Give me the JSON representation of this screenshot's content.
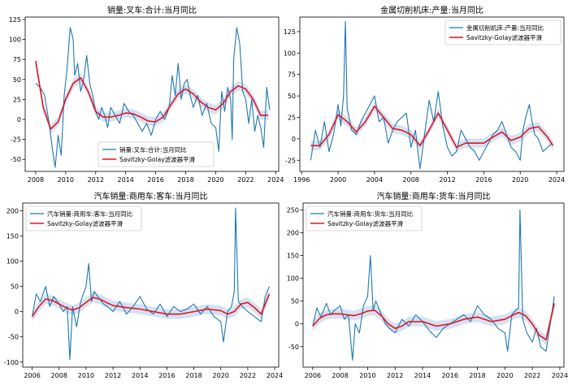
{
  "colors": {
    "raw": "#1f77b4",
    "smooth": "#e8141b",
    "band": "#a9c6e8"
  },
  "chart_data": [
    {
      "type": "line",
      "title": "销量:叉车:合计:当月同比",
      "xlim": [
        2007.3,
        2024.2
      ],
      "ylim": [
        -65,
        128
      ],
      "xticks": [
        2008,
        2010,
        2012,
        2014,
        2016,
        2018,
        2020,
        2022,
        2024
      ],
      "yticks": [
        -50,
        -25,
        0,
        25,
        50,
        75,
        100,
        125
      ],
      "legend_position": "lower-center",
      "series": [
        {
          "name": "销量:叉车:合计:当月同比",
          "role": "raw",
          "x": [
            2008.0,
            2008.3,
            2008.6,
            2008.9,
            2009.1,
            2009.3,
            2009.5,
            2009.7,
            2009.9,
            2010.1,
            2010.3,
            2010.5,
            2010.6,
            2010.8,
            2011.0,
            2011.2,
            2011.4,
            2011.6,
            2011.8,
            2012.0,
            2012.2,
            2012.4,
            2012.6,
            2012.8,
            2013.0,
            2013.3,
            2013.6,
            2013.9,
            2014.2,
            2014.5,
            2014.8,
            2015.1,
            2015.4,
            2015.7,
            2016.0,
            2016.3,
            2016.6,
            2016.9,
            2017.1,
            2017.3,
            2017.5,
            2017.7,
            2017.9,
            2018.1,
            2018.3,
            2018.5,
            2018.8,
            2019.1,
            2019.4,
            2019.7,
            2020.0,
            2020.2,
            2020.4,
            2020.6,
            2020.8,
            2021.0,
            2021.1,
            2021.2,
            2021.4,
            2021.6,
            2021.8,
            2022.0,
            2022.2,
            2022.4,
            2022.6,
            2022.8,
            2023.0,
            2023.2,
            2023.4,
            2023.6
          ],
          "y": [
            45,
            40,
            30,
            -5,
            -35,
            -60,
            -20,
            -45,
            30,
            65,
            115,
            100,
            55,
            70,
            35,
            50,
            80,
            45,
            30,
            10,
            0,
            15,
            5,
            -10,
            15,
            5,
            -5,
            20,
            10,
            5,
            -5,
            -15,
            -5,
            -20,
            0,
            10,
            0,
            15,
            55,
            30,
            70,
            25,
            45,
            50,
            30,
            15,
            30,
            5,
            20,
            -5,
            -10,
            -40,
            35,
            10,
            40,
            25,
            -25,
            75,
            115,
            95,
            35,
            25,
            -5,
            25,
            -15,
            5,
            -10,
            -35,
            40,
            12
          ]
        },
        {
          "name": "Savitzky-Golay滤波器平滑",
          "role": "smooth",
          "x": [
            2008.0,
            2008.5,
            2009.0,
            2009.5,
            2010.0,
            2010.5,
            2011.0,
            2011.5,
            2012.0,
            2012.5,
            2013.0,
            2013.5,
            2014.0,
            2014.5,
            2015.0,
            2015.5,
            2016.0,
            2016.5,
            2017.0,
            2017.5,
            2018.0,
            2018.5,
            2019.0,
            2019.5,
            2020.0,
            2020.5,
            2021.0,
            2021.5,
            2022.0,
            2022.5,
            2023.0,
            2023.5
          ],
          "y": [
            73,
            15,
            -12,
            -3,
            25,
            45,
            52,
            35,
            10,
            3,
            3,
            5,
            8,
            7,
            3,
            -2,
            -3,
            3,
            18,
            32,
            38,
            32,
            22,
            15,
            12,
            20,
            35,
            42,
            38,
            25,
            5,
            5
          ]
        }
      ]
    },
    {
      "type": "line",
      "title": "金属切削机床:产量:当月同比",
      "xlim": [
        1995.8,
        2024.8
      ],
      "ylim": [
        -38,
        142
      ],
      "xticks": [
        1996,
        2000,
        2004,
        2008,
        2012,
        2016,
        2020,
        2024
      ],
      "yticks": [
        -25,
        0,
        25,
        50,
        75,
        100,
        125
      ],
      "legend_position": "top-right",
      "series": [
        {
          "name": "金属切削机床:产量:当月同比",
          "role": "raw",
          "x": [
            1997.0,
            1997.5,
            1998.0,
            1998.5,
            1999.0,
            1999.5,
            2000.0,
            2000.3,
            2000.6,
            2000.8,
            2001.0,
            2001.5,
            2002.0,
            2002.5,
            2003.0,
            2003.5,
            2004.0,
            2004.5,
            2005.0,
            2005.5,
            2006.0,
            2006.5,
            2007.0,
            2007.5,
            2008.0,
            2008.5,
            2009.0,
            2009.5,
            2010.0,
            2010.5,
            2011.0,
            2011.5,
            2012.0,
            2012.5,
            2013.0,
            2013.5,
            2014.0,
            2014.5,
            2015.0,
            2015.5,
            2016.0,
            2016.5,
            2017.0,
            2017.5,
            2018.0,
            2018.5,
            2019.0,
            2019.5,
            2020.0,
            2020.3,
            2020.6,
            2021.0,
            2021.3,
            2021.6,
            2022.0,
            2022.5,
            2023.0,
            2023.5
          ],
          "y": [
            -25,
            10,
            -10,
            20,
            -15,
            5,
            40,
            15,
            50,
            137,
            35,
            10,
            5,
            20,
            30,
            40,
            50,
            20,
            25,
            -5,
            10,
            20,
            25,
            30,
            -10,
            10,
            -35,
            5,
            45,
            20,
            55,
            15,
            -10,
            -20,
            -15,
            10,
            0,
            -10,
            -15,
            -25,
            -15,
            -5,
            5,
            10,
            20,
            5,
            -10,
            -15,
            -25,
            10,
            25,
            40,
            20,
            5,
            0,
            -15,
            -10,
            -5
          ]
        },
        {
          "name": "Savitzky-Golay滤波器平滑",
          "role": "smooth",
          "x": [
            1997,
            1998,
            1999,
            2000,
            2001,
            2002,
            2003,
            2004,
            2005,
            2006,
            2007,
            2008,
            2009,
            2010,
            2011,
            2012,
            2013,
            2014,
            2015,
            2016,
            2017,
            2018,
            2019,
            2020,
            2021,
            2022,
            2023,
            2023.6
          ],
          "y": [
            -8,
            -8,
            5,
            28,
            20,
            8,
            20,
            38,
            25,
            12,
            10,
            5,
            -8,
            10,
            30,
            10,
            -10,
            -5,
            -5,
            -5,
            2,
            8,
            -2,
            2,
            12,
            14,
            2,
            -8
          ]
        }
      ]
    },
    {
      "type": "line",
      "title": "汽车销量:商用车:客车:当月同比",
      "xlim": [
        2005.3,
        2024.3
      ],
      "ylim": [
        -110,
        215
      ],
      "xticks": [
        2006,
        2008,
        2010,
        2012,
        2014,
        2016,
        2018,
        2020,
        2022,
        2024
      ],
      "yticks": [
        -100,
        -50,
        0,
        50,
        100,
        150,
        200
      ],
      "legend_position": "top-left",
      "series": [
        {
          "name": "汽车销量:商用车:客车:当月同比",
          "role": "raw",
          "x": [
            2006.0,
            2006.3,
            2006.6,
            2007.0,
            2007.3,
            2007.6,
            2008.0,
            2008.3,
            2008.6,
            2008.8,
            2009.0,
            2009.3,
            2009.6,
            2010.0,
            2010.2,
            2010.4,
            2010.6,
            2011.0,
            2011.3,
            2011.6,
            2012.0,
            2012.5,
            2013.0,
            2013.5,
            2014.0,
            2014.5,
            2015.0,
            2015.5,
            2016.0,
            2016.5,
            2017.0,
            2017.5,
            2018.0,
            2018.5,
            2019.0,
            2019.5,
            2020.0,
            2020.2,
            2020.5,
            2020.8,
            2021.0,
            2021.1,
            2021.3,
            2021.6,
            2022.0,
            2022.5,
            2023.0,
            2023.3,
            2023.6
          ],
          "y": [
            -10,
            35,
            20,
            50,
            10,
            30,
            15,
            0,
            10,
            -95,
            10,
            -30,
            20,
            50,
            95,
            20,
            40,
            25,
            15,
            10,
            0,
            20,
            -5,
            10,
            30,
            5,
            -5,
            15,
            -10,
            10,
            0,
            5,
            15,
            -5,
            10,
            -10,
            -20,
            -60,
            0,
            10,
            40,
            205,
            20,
            10,
            0,
            -10,
            -20,
            30,
            50
          ]
        },
        {
          "name": "Savitzky-Golay滤波器平滑",
          "role": "smooth",
          "x": [
            2006,
            2006.5,
            2007,
            2007.5,
            2008,
            2008.5,
            2009,
            2009.5,
            2010,
            2010.5,
            2011,
            2011.5,
            2012,
            2012.5,
            2013,
            2014,
            2015,
            2016,
            2017,
            2018,
            2019,
            2020,
            2020.5,
            2021,
            2021.5,
            2022,
            2022.5,
            2023,
            2023.6
          ],
          "y": [
            -10,
            10,
            25,
            22,
            15,
            8,
            3,
            8,
            18,
            28,
            25,
            18,
            12,
            10,
            8,
            5,
            0,
            -5,
            -5,
            0,
            5,
            2,
            -5,
            0,
            15,
            18,
            8,
            -5,
            35
          ]
        }
      ]
    },
    {
      "type": "line",
      "title": "汽车销量:商用车:货车:当月同比",
      "xlim": [
        2005.3,
        2024.3
      ],
      "ylim": [
        -95,
        265
      ],
      "xticks": [
        2006,
        2008,
        2010,
        2012,
        2014,
        2016,
        2018,
        2020,
        2022,
        2024
      ],
      "yticks": [
        -50,
        0,
        50,
        100,
        150,
        200,
        250
      ],
      "legend_position": "top-left",
      "series": [
        {
          "name": "汽车销量:商用车:货车:当月同比",
          "role": "raw",
          "x": [
            2006.0,
            2006.3,
            2006.6,
            2007.0,
            2007.3,
            2007.6,
            2008.0,
            2008.3,
            2008.6,
            2008.9,
            2009.1,
            2009.4,
            2009.7,
            2010.0,
            2010.2,
            2010.4,
            2010.6,
            2011.0,
            2011.3,
            2011.6,
            2012.0,
            2012.5,
            2013.0,
            2013.5,
            2014.0,
            2014.5,
            2015.0,
            2015.5,
            2016.0,
            2016.5,
            2017.0,
            2017.5,
            2018.0,
            2018.5,
            2019.0,
            2019.5,
            2020.0,
            2020.2,
            2020.5,
            2020.8,
            2021.0,
            2021.1,
            2021.3,
            2021.6,
            2022.0,
            2022.3,
            2022.6,
            2023.0,
            2023.3,
            2023.6
          ],
          "y": [
            -5,
            35,
            15,
            45,
            20,
            30,
            40,
            10,
            20,
            -80,
            0,
            -20,
            40,
            60,
            150,
            30,
            50,
            20,
            0,
            -10,
            -20,
            10,
            -5,
            20,
            5,
            -15,
            -30,
            -10,
            0,
            10,
            20,
            5,
            40,
            20,
            10,
            -10,
            -20,
            -60,
            20,
            30,
            35,
            250,
            10,
            -20,
            -40,
            -10,
            -50,
            -60,
            0,
            60
          ]
        },
        {
          "name": "Savitzky-Golay滤波器平滑",
          "role": "smooth",
          "x": [
            2006,
            2006.5,
            2007,
            2007.5,
            2008,
            2008.5,
            2009,
            2009.5,
            2010,
            2010.5,
            2011,
            2011.5,
            2012,
            2012.5,
            2013,
            2014,
            2015,
            2016,
            2017,
            2018,
            2019,
            2020,
            2020.5,
            2021,
            2021.5,
            2022,
            2022.5,
            2023,
            2023.6
          ],
          "y": [
            -5,
            12,
            20,
            22,
            22,
            20,
            18,
            22,
            28,
            30,
            18,
            0,
            -10,
            -5,
            5,
            5,
            -5,
            0,
            10,
            15,
            5,
            10,
            18,
            25,
            18,
            0,
            -25,
            -35,
            45
          ]
        }
      ]
    }
  ]
}
